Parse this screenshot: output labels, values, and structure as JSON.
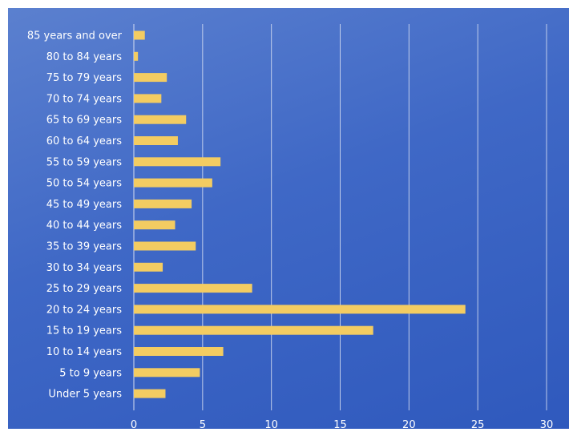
{
  "chart_data": {
    "type": "bar",
    "orientation": "horizontal",
    "title": "",
    "xlabel": "",
    "ylabel": "",
    "xlim": [
      0,
      30
    ],
    "x_ticks": [
      0,
      5,
      10,
      15,
      20,
      25,
      30
    ],
    "grid": true,
    "legend": "none",
    "bar_color": "#f3cc62",
    "background_color": "#3f68c6",
    "categories": [
      "85 years and over",
      "80 to 84 years",
      "75 to 79 years",
      "70 to 74 years",
      "65 to 69 years",
      "60 to 64 years",
      "55 to 59 years",
      "50 to 54 years",
      "45 to 49 years",
      "40 to 44 years",
      "35 to 39 years",
      "30 to 34 years",
      "25 to 29 years",
      "20 to 24 years",
      "15 to 19 years",
      "10 to 14 years",
      "5 to 9 years",
      "Under 5 years"
    ],
    "values": [
      0.8,
      0.3,
      2.4,
      2.0,
      3.8,
      3.2,
      6.3,
      5.7,
      4.2,
      3.0,
      4.5,
      2.1,
      8.6,
      24.1,
      17.4,
      6.5,
      4.8,
      2.3
    ]
  }
}
